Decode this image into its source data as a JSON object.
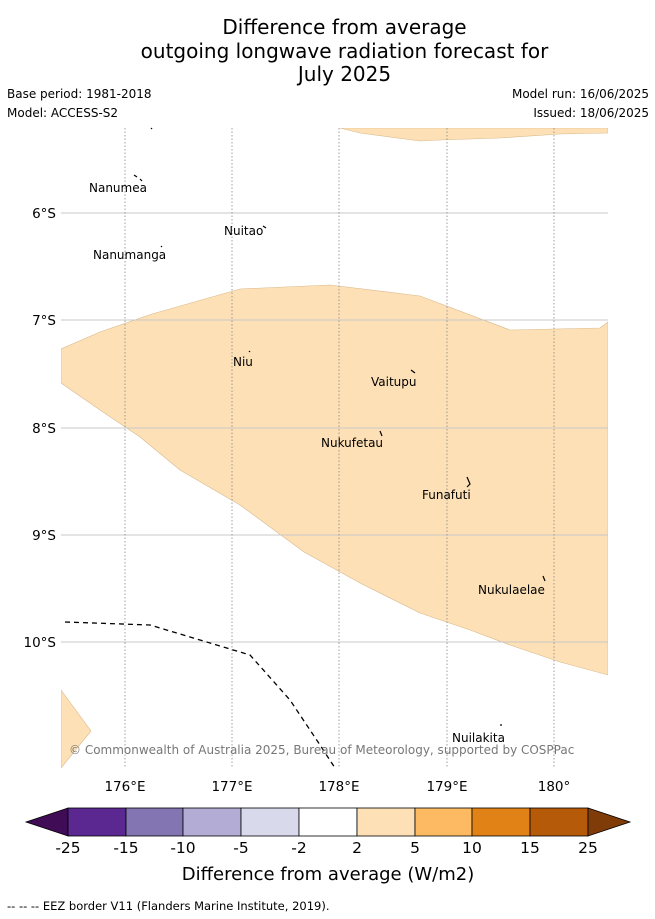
{
  "title_lines": [
    "Difference from average",
    "outgoing longwave radiation forecast for",
    "July 2025"
  ],
  "meta": {
    "base_period": "Base period: 1981-2018",
    "model": "Model: ACCESS-S2",
    "model_run": "Model run: 16/06/2025",
    "issued": "Issued: 18/06/2025"
  },
  "lat_labels": [
    "6°S",
    "7°S",
    "8°S",
    "9°S",
    "10°S"
  ],
  "lon_labels": [
    "176°E",
    "177°E",
    "178°E",
    "179°E",
    "180°"
  ],
  "islands": [
    "Nanumea",
    "Nuitao",
    "Nanumanga",
    "Niu",
    "Vaitupu",
    "Nukufetau",
    "Funafuti",
    "Nukulaelae",
    "Nuilakita"
  ],
  "copyright": "© Commonwealth of Australia 2025, Bureau of Meteorology, supported by COSPPac",
  "colorbar": {
    "title": "Difference from average (W/m2)",
    "ticks": [
      "-25",
      "-15",
      "-10",
      "-5",
      "-2",
      "2",
      "5",
      "10",
      "15",
      "25"
    ],
    "colors": [
      "#3f0c55",
      "#5a2890",
      "#8275b1",
      "#b3acd5",
      "#d9d9ec",
      "#ffffff",
      "#fde0b5",
      "#fdba63",
      "#e08215",
      "#b45a08",
      "#7f3b08"
    ]
  },
  "footer": "-- -- -- EEZ border V11 (Flanders Marine Institute, 2019)."
}
